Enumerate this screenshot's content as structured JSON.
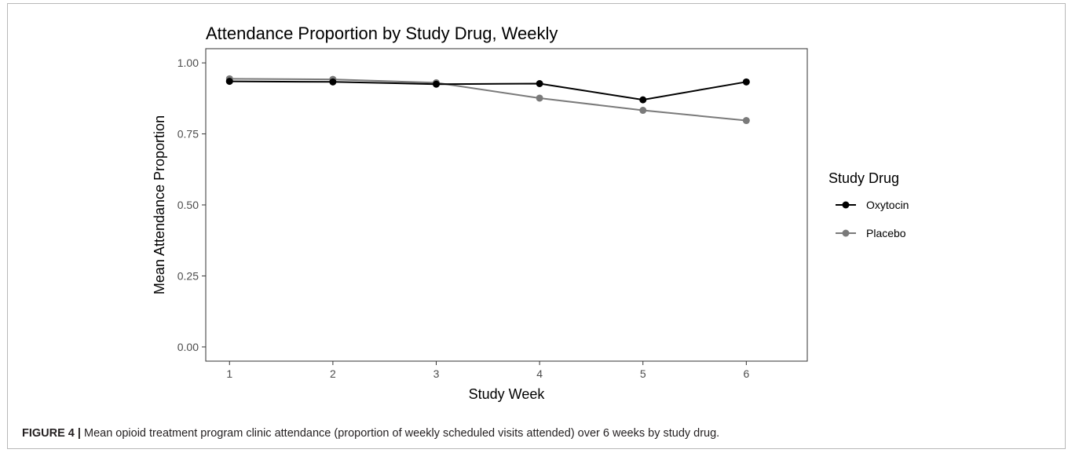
{
  "chart_data": {
    "type": "line",
    "title": "Attendance Proportion by Study Drug, Weekly",
    "xlabel": "Study Week",
    "ylabel": "Mean Attendance Proportion",
    "x": [
      1,
      2,
      3,
      4,
      5,
      6
    ],
    "x_tick_labels": [
      "1",
      "2",
      "3",
      "4",
      "5",
      "6"
    ],
    "y_tick_values": [
      0,
      0.25,
      0.5,
      0.75,
      1.0
    ],
    "y_tick_labels": [
      "0.00",
      "0.25",
      "0.50",
      "0.75",
      "1.00"
    ],
    "xlim": [
      0.77,
      6.59
    ],
    "ylim": [
      -0.05,
      1.05
    ],
    "grid": false,
    "legend_title": "Study Drug",
    "legend_position": "right",
    "series": [
      {
        "name": "Oxytocin",
        "color": "#000000",
        "values": [
          0.935,
          0.933,
          0.925,
          0.927,
          0.87,
          0.933
        ]
      },
      {
        "name": "Placebo",
        "color": "#7a7a7a",
        "values": [
          0.944,
          0.942,
          0.93,
          0.876,
          0.833,
          0.797
        ]
      }
    ]
  },
  "caption": {
    "label": "FIGURE 4 |",
    "text": " Mean opioid treatment program clinic attendance (proportion of weekly scheduled visits attended) over 6 weeks by study drug."
  }
}
